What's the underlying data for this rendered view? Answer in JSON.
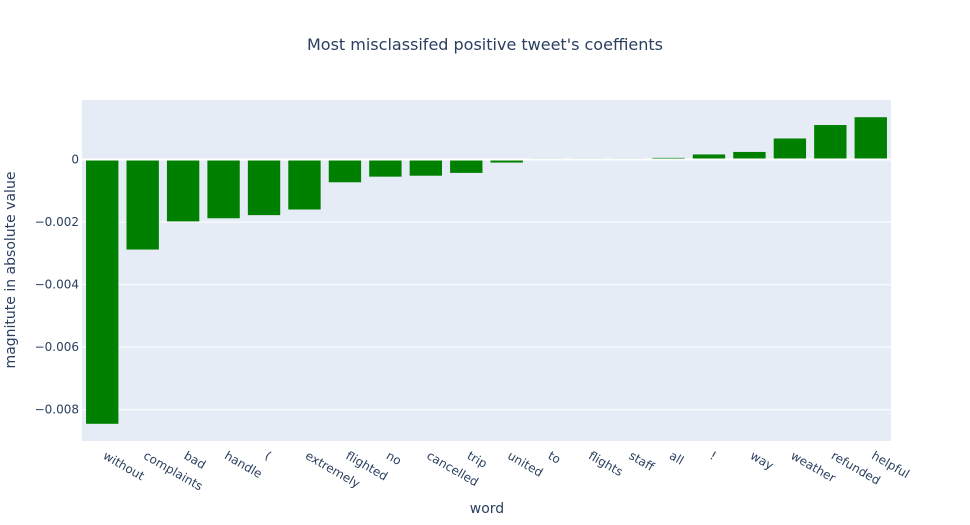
{
  "chart_data": {
    "type": "bar",
    "title": "Most misclassifed positive tweet's coeffients",
    "xlabel": "word",
    "ylabel": "magnitute in absolute value",
    "categories": [
      "without",
      "complaints",
      "bad",
      "handle",
      "(",
      "extremely",
      "flighted",
      "no",
      "cancelled",
      "trip",
      "united",
      "to",
      "flights",
      "staff",
      "all",
      "!",
      "way",
      "weather",
      "refunded",
      "helpful"
    ],
    "values": [
      -0.00845,
      -0.00288,
      -0.00198,
      -0.00188,
      -0.00178,
      -0.0016,
      -0.00073,
      -0.00055,
      -0.00052,
      -0.00043,
      -0.0001,
      2e-05,
      2e-05,
      1e-05,
      5e-05,
      0.00016,
      0.00024,
      0.00067,
      0.0011,
      0.00135
    ],
    "ylim": [
      -0.009,
      0.0019
    ],
    "yticks": [
      0,
      -0.002,
      -0.004,
      -0.006,
      -0.008
    ],
    "ytick_labels": [
      "0",
      "−0.002",
      "−0.004",
      "−0.006",
      "−0.008"
    ],
    "bar_color": "#008000",
    "plot_bg": "#e5ecf6",
    "grid": true,
    "legend": "none"
  }
}
